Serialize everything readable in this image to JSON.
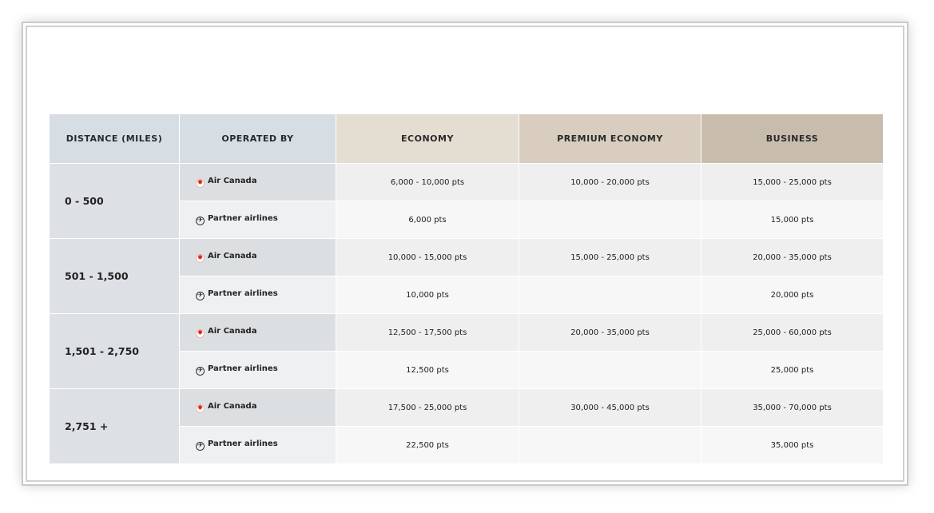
{
  "table": {
    "headers": {
      "distance": "DISTANCE (MILES)",
      "operated_by": "OPERATED BY",
      "economy": "ECONOMY",
      "premium_economy": "PREMIUM ECONOMY",
      "business": "BUSINESS"
    },
    "header_colors": {
      "distance": "#d6dee4",
      "economy": "#e4ddd2",
      "premium_economy": "#d8cdbf",
      "business": "#c8bcad"
    },
    "groups": [
      {
        "distance": "0 - 500",
        "air_canada": {
          "label": "Air Canada",
          "icon": "air-canada-maple-leaf-icon",
          "economy": "6,000 - 10,000 pts",
          "premium_economy": "10,000 - 20,000 pts",
          "business": "15,000 - 25,000 pts"
        },
        "partner": {
          "label": "Partner airlines",
          "icon": "plane-circle-icon",
          "economy": "6,000 pts",
          "premium_economy": "",
          "business": "15,000 pts"
        }
      },
      {
        "distance": "501 - 1,500",
        "air_canada": {
          "label": "Air Canada",
          "icon": "air-canada-maple-leaf-icon",
          "economy": "10,000 - 15,000 pts",
          "premium_economy": "15,000 - 25,000 pts",
          "business": "20,000 - 35,000 pts"
        },
        "partner": {
          "label": "Partner airlines",
          "icon": "plane-circle-icon",
          "economy": "10,000 pts",
          "premium_economy": "",
          "business": "20,000 pts"
        }
      },
      {
        "distance": "1,501 - 2,750",
        "air_canada": {
          "label": "Air Canada",
          "icon": "air-canada-maple-leaf-icon",
          "economy": "12,500 - 17,500 pts",
          "premium_economy": "20,000 - 35,000 pts",
          "business": "25,000 - 60,000 pts"
        },
        "partner": {
          "label": "Partner airlines",
          "icon": "plane-circle-icon",
          "economy": "12,500 pts",
          "premium_economy": "",
          "business": "25,000 pts"
        }
      },
      {
        "distance": "2,751 +",
        "air_canada": {
          "label": "Air Canada",
          "icon": "air-canada-maple-leaf-icon",
          "economy": "17,500 - 25,000 pts",
          "premium_economy": "30,000 - 45,000 pts",
          "business": "35,000 - 70,000 pts"
        },
        "partner": {
          "label": "Partner airlines",
          "icon": "plane-circle-icon",
          "economy": "22,500 pts",
          "premium_economy": "",
          "business": "35,000 pts"
        }
      }
    ]
  }
}
